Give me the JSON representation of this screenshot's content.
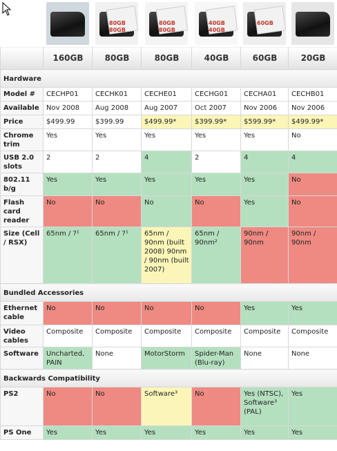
{
  "columns": [
    "160GB",
    "80GB",
    "80GB",
    "40GB",
    "60GB",
    "20GB"
  ],
  "image_icons": [
    "ps3-160gb-bundle-photo",
    "ps3-80gb-photo",
    "ps3-80gb-box-photo",
    "ps3-40gb-photo",
    "ps3-60gb-photo",
    "ps3-20gb-photo"
  ],
  "image_badges": [
    "",
    "80GB 80GB",
    "80GB 80GB",
    "40GB 40GB",
    "60GB",
    ""
  ],
  "sections": {
    "hardware": "Hardware",
    "bundled": "Bundled Accessories",
    "backwards": "Backwards Compatibility"
  },
  "rows": [
    {
      "label": "Model #",
      "cells": [
        [
          "CECHP01",
          "w"
        ],
        [
          "CECHK01",
          "w"
        ],
        [
          "CECHE01",
          "w"
        ],
        [
          "CECHG01",
          "w"
        ],
        [
          "CECHA01",
          "w"
        ],
        [
          "CECHB01",
          "w"
        ]
      ]
    },
    {
      "label": "Available",
      "cells": [
        [
          "Nov 2008",
          "w"
        ],
        [
          "Aug 2008",
          "w"
        ],
        [
          "Aug 2007",
          "w"
        ],
        [
          "Oct 2007",
          "w"
        ],
        [
          "Nov 2006",
          "w"
        ],
        [
          "Nov 2006",
          "w"
        ]
      ]
    },
    {
      "label": "Price",
      "cells": [
        [
          "$499.99",
          "w"
        ],
        [
          "$399.99",
          "w"
        ],
        [
          "$499.99*",
          "y"
        ],
        [
          "$399.99*",
          "y"
        ],
        [
          "$599.99*",
          "y"
        ],
        [
          "$499.99*",
          "y"
        ]
      ]
    },
    {
      "label": "Chrome trim",
      "cells": [
        [
          "Yes",
          "w"
        ],
        [
          "Yes",
          "w"
        ],
        [
          "Yes",
          "w"
        ],
        [
          "Yes",
          "w"
        ],
        [
          "Yes",
          "w"
        ],
        [
          "No",
          "w"
        ]
      ]
    },
    {
      "label": "USB 2.0 slots",
      "cells": [
        [
          "2",
          "w"
        ],
        [
          "2",
          "w"
        ],
        [
          "4",
          "g"
        ],
        [
          "2",
          "w"
        ],
        [
          "4",
          "g"
        ],
        [
          "4",
          "g"
        ]
      ]
    },
    {
      "label": "802.11 b/g",
      "cells": [
        [
          "Yes",
          "g"
        ],
        [
          "Yes",
          "g"
        ],
        [
          "Yes",
          "g"
        ],
        [
          "Yes",
          "g"
        ],
        [
          "Yes",
          "g"
        ],
        [
          "No",
          "r"
        ]
      ]
    },
    {
      "label": "Flash card reader",
      "cells": [
        [
          "No",
          "r"
        ],
        [
          "No",
          "r"
        ],
        [
          "No",
          "g"
        ],
        [
          "No",
          "r"
        ],
        [
          "Yes",
          "g"
        ],
        [
          "No",
          "r"
        ]
      ]
    },
    {
      "label": "Size (Cell / RSX)",
      "cells": [
        [
          "65nm / ?¹",
          "g"
        ],
        [
          "65nm / ?¹",
          "g"
        ],
        [
          "65nm / 90nm (built 2008) 90nm / 90nm (built 2007)",
          "y"
        ],
        [
          "65nm / 90nm²",
          "g"
        ],
        [
          "90nm / 90nm",
          "r"
        ],
        [
          "90nm / 90nm",
          "r"
        ]
      ]
    }
  ],
  "rows_bundled": [
    {
      "label": "Ethernet cable",
      "cells": [
        [
          "No",
          "r"
        ],
        [
          "No",
          "r"
        ],
        [
          "No",
          "r"
        ],
        [
          "No",
          "r"
        ],
        [
          "Yes",
          "g"
        ],
        [
          "Yes",
          "g"
        ]
      ]
    },
    {
      "label": "Video cables",
      "cells": [
        [
          "Composite",
          "w"
        ],
        [
          "Composite",
          "w"
        ],
        [
          "Composite",
          "w"
        ],
        [
          "Composite",
          "w"
        ],
        [
          "Composite",
          "w"
        ],
        [
          "Composite",
          "w"
        ]
      ]
    },
    {
      "label": "Software",
      "cells": [
        [
          "Uncharted, PAIN",
          "g"
        ],
        [
          "None",
          "w"
        ],
        [
          "MotorStorm",
          "g"
        ],
        [
          "Spider-Man (Blu-ray)",
          "g"
        ],
        [
          "None",
          "w"
        ],
        [
          "None",
          "w"
        ]
      ]
    }
  ],
  "rows_backwards": [
    {
      "label": "PS2",
      "cells": [
        [
          "No",
          "r"
        ],
        [
          "No",
          "r"
        ],
        [
          "Software³",
          "y"
        ],
        [
          "No",
          "r"
        ],
        [
          "Yes (NTSC), Software³ (PAL)",
          "g"
        ],
        [
          "Yes",
          "g"
        ]
      ]
    },
    {
      "label": "PS One",
      "cells": [
        [
          "Yes",
          "g"
        ],
        [
          "Yes",
          "g"
        ],
        [
          "Yes",
          "g"
        ],
        [
          "Yes",
          "g"
        ],
        [
          "Yes",
          "g"
        ],
        [
          "Yes",
          "g"
        ]
      ]
    }
  ]
}
